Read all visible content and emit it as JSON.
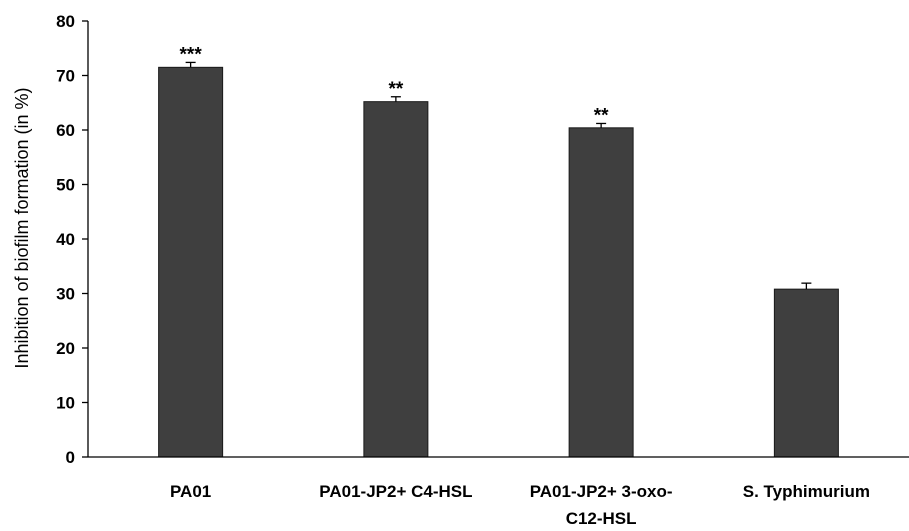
{
  "chart_data": {
    "type": "bar",
    "categories": [
      [
        "PA01"
      ],
      [
        "PA01-JP2+ C4-HSL"
      ],
      [
        "PA01-JP2+ 3-oxo-",
        "C12-HSL"
      ],
      [
        "S. Typhimurium"
      ]
    ],
    "values": [
      71.5,
      65.2,
      60.4,
      30.8
    ],
    "errors": [
      0.9,
      0.9,
      0.8,
      1.1
    ],
    "significance": [
      "***",
      "**",
      "**",
      ""
    ],
    "xlabel": "",
    "ylabel": "Inhibition of biofilm formation (in %)",
    "ylim": [
      0,
      80
    ],
    "yticks": [
      0,
      10,
      20,
      30,
      40,
      50,
      60,
      70,
      80
    ],
    "grid": false,
    "legend": "none",
    "bar_color": "#3f3f3f",
    "bar_edge_color": "#1a1a1a"
  }
}
